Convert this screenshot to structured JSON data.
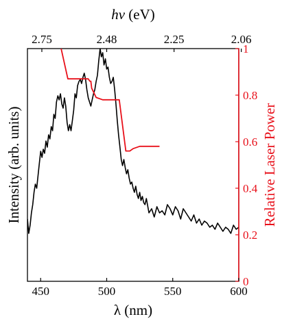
{
  "chart_data": {
    "type": "line",
    "title": "",
    "xlabel": "λ (nm)",
    "x2label_italic": "hν",
    "x2label_rest": " (eV)",
    "ylabel": "Intensity (arb. units)",
    "y2label": "Relative Laser Power",
    "xlim": [
      440,
      600
    ],
    "x_ticks": [
      450,
      500,
      550,
      600
    ],
    "x2_ticks": [
      "2.75",
      "2.48",
      "2.25",
      "2.06"
    ],
    "x2_tick_wavelengths": [
      450.9,
      500.0,
      551.0,
      601.9
    ],
    "y2lim": [
      0,
      1
    ],
    "y2_ticks": [
      "0",
      "0.2",
      "0.4",
      "0.6",
      "0.8",
      "1"
    ],
    "grid": false,
    "colors": {
      "intensity": "#000000",
      "power": "#e8101a",
      "axis": "#000000",
      "right_axis": "#e8101a"
    },
    "series": [
      {
        "axis": "left",
        "x": [
          440,
          441,
          442,
          443,
          444,
          445,
          446,
          447,
          448,
          449,
          450,
          451,
          452,
          453,
          454,
          455,
          456,
          457,
          458,
          459,
          460,
          461,
          462,
          463,
          464,
          465,
          466,
          467,
          468,
          469,
          470,
          471,
          472,
          473,
          474,
          475,
          476,
          477,
          478,
          479,
          480,
          481,
          482,
          483,
          484,
          485,
          486,
          487,
          488,
          489,
          490,
          491,
          492,
          493,
          494,
          495,
          496,
          497,
          498,
          499,
          500,
          501,
          502,
          503,
          504,
          505,
          506,
          507,
          508,
          509,
          510,
          511,
          512,
          513,
          514,
          515,
          516,
          517,
          518,
          519,
          520,
          521,
          522,
          523,
          524,
          525,
          526,
          527,
          528,
          529,
          530,
          532,
          534,
          536,
          538,
          540,
          542,
          544,
          546,
          548,
          550,
          552,
          554,
          556,
          558,
          560,
          562,
          564,
          566,
          568,
          570,
          572,
          574,
          576,
          578,
          580,
          582,
          584,
          586,
          588,
          590,
          592,
          594,
          596,
          598,
          600
        ],
        "y": [
          0.17,
          0.1,
          0.14,
          0.2,
          0.24,
          0.3,
          0.34,
          0.32,
          0.38,
          0.44,
          0.5,
          0.47,
          0.51,
          0.49,
          0.55,
          0.52,
          0.58,
          0.56,
          0.62,
          0.6,
          0.68,
          0.66,
          0.74,
          0.77,
          0.75,
          0.78,
          0.73,
          0.71,
          0.76,
          0.72,
          0.64,
          0.6,
          0.63,
          0.6,
          0.65,
          0.7,
          0.78,
          0.76,
          0.82,
          0.84,
          0.85,
          0.83,
          0.86,
          0.88,
          0.85,
          0.8,
          0.76,
          0.74,
          0.72,
          0.75,
          0.78,
          0.8,
          0.84,
          0.87,
          0.94,
          1.0,
          0.96,
          0.98,
          0.92,
          0.95,
          0.9,
          0.91,
          0.86,
          0.83,
          0.84,
          0.86,
          0.8,
          0.73,
          0.65,
          0.58,
          0.52,
          0.46,
          0.43,
          0.46,
          0.42,
          0.39,
          0.41,
          0.37,
          0.34,
          0.35,
          0.32,
          0.3,
          0.33,
          0.29,
          0.27,
          0.3,
          0.26,
          0.28,
          0.25,
          0.24,
          0.27,
          0.2,
          0.22,
          0.18,
          0.23,
          0.2,
          0.21,
          0.19,
          0.24,
          0.22,
          0.19,
          0.23,
          0.21,
          0.17,
          0.22,
          0.2,
          0.18,
          0.16,
          0.19,
          0.15,
          0.17,
          0.14,
          0.16,
          0.15,
          0.13,
          0.14,
          0.12,
          0.15,
          0.13,
          0.11,
          0.13,
          0.12,
          0.1,
          0.14,
          0.12,
          0.13
        ]
      },
      {
        "axis": "right",
        "x": [
          465.5,
          470.6,
          471.2,
          486.0,
          487.2,
          488.0,
          488.6,
          492.0,
          497.0,
          505.0,
          509.5,
          514.5,
          517.5,
          520.0,
          525.0,
          540.0
        ],
        "y": [
          1.0,
          0.87,
          0.87,
          0.87,
          0.86,
          0.86,
          0.83,
          0.79,
          0.78,
          0.78,
          0.78,
          0.56,
          0.56,
          0.57,
          0.58,
          0.58
        ]
      }
    ]
  }
}
